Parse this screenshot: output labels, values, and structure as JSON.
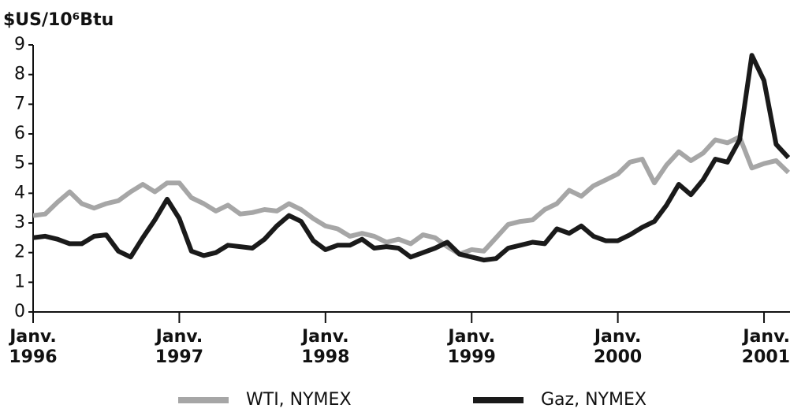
{
  "chart_data": {
    "type": "line",
    "y_axis_label": "$US/10⁶Btu",
    "x": [
      1996,
      1996.083,
      1996.167,
      1996.25,
      1996.333,
      1996.417,
      1996.5,
      1996.583,
      1996.667,
      1996.75,
      1996.833,
      1996.917,
      1997,
      1997.083,
      1997.167,
      1997.25,
      1997.333,
      1997.417,
      1997.5,
      1997.583,
      1997.667,
      1997.75,
      1997.833,
      1997.917,
      1998,
      1998.083,
      1998.167,
      1998.25,
      1998.333,
      1998.417,
      1998.5,
      1998.583,
      1998.667,
      1998.75,
      1998.833,
      1998.917,
      1999,
      1999.083,
      1999.167,
      1999.25,
      1999.333,
      1999.417,
      1999.5,
      1999.583,
      1999.667,
      1999.75,
      1999.833,
      1999.917,
      2000,
      2000.083,
      2000.167,
      2000.25,
      2000.333,
      2000.417,
      2000.5,
      2000.583,
      2000.667,
      2000.75,
      2000.833,
      2000.917,
      2001,
      2001.083,
      2001.167
    ],
    "series": [
      {
        "name": "WTI, NYMEX",
        "color": "#a6a6a6",
        "values": [
          3.25,
          3.3,
          3.7,
          4.05,
          3.65,
          3.5,
          3.65,
          3.75,
          4.05,
          4.3,
          4.05,
          4.35,
          4.35,
          3.85,
          3.65,
          3.4,
          3.6,
          3.3,
          3.35,
          3.45,
          3.4,
          3.65,
          3.45,
          3.15,
          2.9,
          2.8,
          2.55,
          2.65,
          2.55,
          2.35,
          2.45,
          2.3,
          2.6,
          2.5,
          2.2,
          1.95,
          2.1,
          2.05,
          2.5,
          2.95,
          3.05,
          3.1,
          3.45,
          3.65,
          4.1,
          3.9,
          4.25,
          4.45,
          4.65,
          5.05,
          5.15,
          4.35,
          4.95,
          5.4,
          5.1,
          5.35,
          5.8,
          5.7,
          5.9,
          4.85,
          5.0,
          5.1,
          4.7
        ]
      },
      {
        "name": "Gaz, NYMEX",
        "color": "#1a1a1a",
        "values": [
          2.5,
          2.55,
          2.45,
          2.3,
          2.3,
          2.55,
          2.6,
          2.05,
          1.85,
          2.5,
          3.1,
          3.8,
          3.15,
          2.05,
          1.9,
          2.0,
          2.25,
          2.2,
          2.15,
          2.45,
          2.9,
          3.25,
          3.05,
          2.4,
          2.1,
          2.25,
          2.25,
          2.45,
          2.15,
          2.2,
          2.15,
          1.85,
          2.0,
          2.15,
          2.35,
          1.95,
          1.85,
          1.75,
          1.8,
          2.15,
          2.25,
          2.35,
          2.3,
          2.8,
          2.65,
          2.9,
          2.55,
          2.4,
          2.4,
          2.6,
          2.85,
          3.05,
          3.6,
          4.3,
          3.95,
          4.45,
          5.15,
          5.05,
          5.8,
          8.65,
          7.8,
          5.65,
          5.2
        ]
      }
    ],
    "xlim": [
      1996,
      2001.167
    ],
    "xticks": [
      {
        "value": 1996,
        "label": "Janv. 1996"
      },
      {
        "value": 1997,
        "label": "Janv. 1997"
      },
      {
        "value": 1998,
        "label": "Janv. 1998"
      },
      {
        "value": 1999,
        "label": "Janv. 1999"
      },
      {
        "value": 2000,
        "label": "Janv. 2000"
      },
      {
        "value": 2001,
        "label": "Janv. 2001"
      }
    ],
    "ylim": [
      0,
      9
    ],
    "yticks": [
      0,
      1,
      2,
      3,
      4,
      5,
      6,
      7,
      8,
      9
    ],
    "grid": false
  }
}
